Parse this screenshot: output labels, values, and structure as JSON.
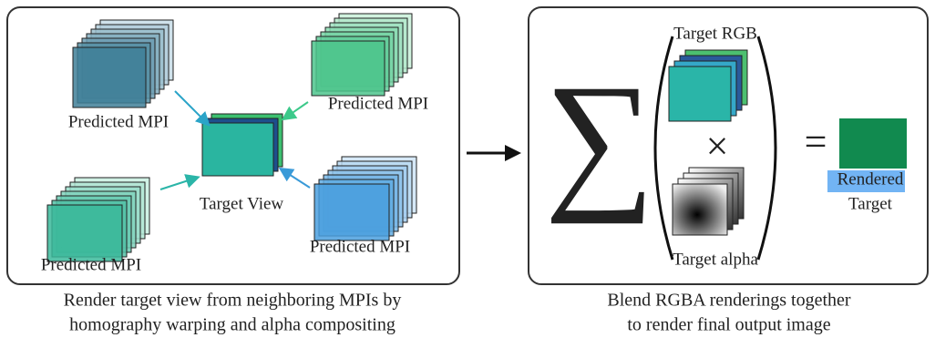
{
  "left_panel": {
    "mpi_labels": [
      "Predicted MPI",
      "Predicted MPI",
      "Predicted MPI",
      "Predicted MPI"
    ],
    "target_label": "Target View",
    "caption": [
      "Render target view from neighboring MPIs by",
      "homography warping and alpha compositing"
    ]
  },
  "right_panel": {
    "rgb_label": "Target RGB",
    "alpha_label": "Target alpha",
    "operators": {
      "sum": "∑",
      "times": "×",
      "equals": "="
    },
    "output_label": [
      "Rendered",
      "Target"
    ],
    "caption": [
      "Blend RGBA renderings together",
      "to render final output image"
    ]
  }
}
